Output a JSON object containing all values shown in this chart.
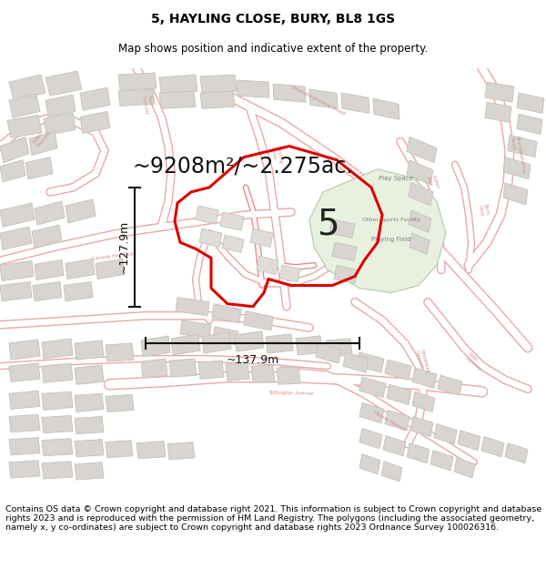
{
  "title": "5, HAYLING CLOSE, BURY, BL8 1GS",
  "subtitle": "Map shows position and indicative extent of the property.",
  "area_text": "~9208m²/~2.275ac.",
  "dim_vertical": "~127.9m",
  "dim_horizontal": "~137.9m",
  "plot_label": "5",
  "footer": "Contains OS data © Crown copyright and database right 2021. This information is subject to Crown copyright and database rights 2023 and is reproduced with the permission of HM Land Registry. The polygons (including the associated geometry, namely x, y co-ordinates) are subject to Crown copyright and database rights 2023 Ordnance Survey 100026316.",
  "bg_color": "#ffffff",
  "map_bg": "#ffffff",
  "road_outline": "#e8a8a8",
  "road_fill": "#ffffff",
  "building_fill": "#d8d5d0",
  "building_edge": "#c8c5c0",
  "green_fill": "#e8f0e0",
  "property_color": "#dd0000",
  "title_fontsize": 10,
  "subtitle_fontsize": 8.5,
  "footer_fontsize": 6.8,
  "label_color": "#d09090"
}
